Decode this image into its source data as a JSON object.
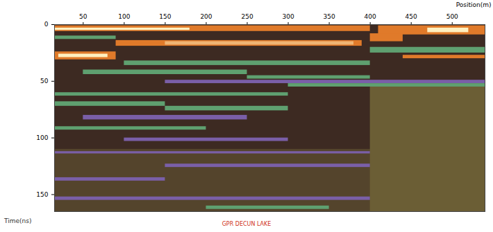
{
  "chart_data": {
    "type": "heatmap",
    "title": "GPR DECUN LAKE",
    "x_label": "Position(m)",
    "y_label": "Time(ns)",
    "xlim": [
      15,
      540
    ],
    "xticks": [
      50,
      100,
      150,
      200,
      250,
      300,
      350,
      400,
      450,
      500
    ],
    "ylim": [
      0,
      165
    ],
    "yticks": [
      0,
      50,
      100,
      150
    ],
    "cells": [
      {
        "x1": 15,
        "x2": 540,
        "y1": 0,
        "y2": 165,
        "value": 0
      },
      {
        "x1": 15,
        "x2": 540,
        "y1": 0,
        "y2": 55,
        "value": -1
      },
      {
        "x1": 15,
        "x2": 400,
        "y1": 55,
        "y2": 110,
        "value": -1
      },
      {
        "x1": 15,
        "x2": 400,
        "y1": 110,
        "y2": 165,
        "value": -0.5
      },
      {
        "x1": 15,
        "x2": 400,
        "y1": 1,
        "y2": 6,
        "value": 2
      },
      {
        "x1": 15,
        "x2": 180,
        "y1": 3,
        "y2": 5,
        "value": 3
      },
      {
        "x1": 15,
        "x2": 90,
        "y1": 10,
        "y2": 13,
        "value": 1
      },
      {
        "x1": 90,
        "x2": 390,
        "y1": 14,
        "y2": 19,
        "value": 2
      },
      {
        "x1": 150,
        "x2": 380,
        "y1": 15,
        "y2": 18,
        "value": 2.5
      },
      {
        "x1": 15,
        "x2": 90,
        "y1": 24,
        "y2": 31,
        "value": 2
      },
      {
        "x1": 20,
        "x2": 80,
        "y1": 26,
        "y2": 29,
        "value": 3
      },
      {
        "x1": 410,
        "x2": 540,
        "y1": 1,
        "y2": 9,
        "value": 2
      },
      {
        "x1": 470,
        "x2": 520,
        "y1": 3,
        "y2": 7,
        "value": 3
      },
      {
        "x1": 400,
        "x2": 440,
        "y1": 8,
        "y2": 15,
        "value": 2
      },
      {
        "x1": 400,
        "x2": 540,
        "y1": 20,
        "y2": 25,
        "value": 1
      },
      {
        "x1": 440,
        "x2": 540,
        "y1": 27,
        "y2": 30,
        "value": 2
      },
      {
        "x1": 100,
        "x2": 400,
        "y1": 32,
        "y2": 36,
        "value": 1
      },
      {
        "x1": 50,
        "x2": 250,
        "y1": 40,
        "y2": 44,
        "value": 1
      },
      {
        "x1": 250,
        "x2": 400,
        "y1": 45,
        "y2": 48,
        "value": 1
      },
      {
        "x1": 150,
        "x2": 540,
        "y1": 49,
        "y2": 52,
        "value": -2
      },
      {
        "x1": 300,
        "x2": 540,
        "y1": 52,
        "y2": 55,
        "value": 1
      },
      {
        "x1": 15,
        "x2": 300,
        "y1": 60,
        "y2": 63,
        "value": 1
      },
      {
        "x1": 15,
        "x2": 150,
        "y1": 68,
        "y2": 72,
        "value": 1
      },
      {
        "x1": 150,
        "x2": 300,
        "y1": 72,
        "y2": 76,
        "value": 1
      },
      {
        "x1": 50,
        "x2": 250,
        "y1": 80,
        "y2": 84,
        "value": -2
      },
      {
        "x1": 15,
        "x2": 200,
        "y1": 90,
        "y2": 93,
        "value": 1
      },
      {
        "x1": 100,
        "x2": 300,
        "y1": 100,
        "y2": 103,
        "value": -2
      },
      {
        "x1": 15,
        "x2": 400,
        "y1": 112,
        "y2": 114,
        "value": -2
      },
      {
        "x1": 150,
        "x2": 400,
        "y1": 123,
        "y2": 126,
        "value": -2
      },
      {
        "x1": 15,
        "x2": 150,
        "y1": 135,
        "y2": 138,
        "value": -2
      },
      {
        "x1": 15,
        "x2": 400,
        "y1": 152,
        "y2": 155,
        "value": -2
      },
      {
        "x1": 200,
        "x2": 350,
        "y1": 160,
        "y2": 163,
        "value": 1
      }
    ]
  }
}
